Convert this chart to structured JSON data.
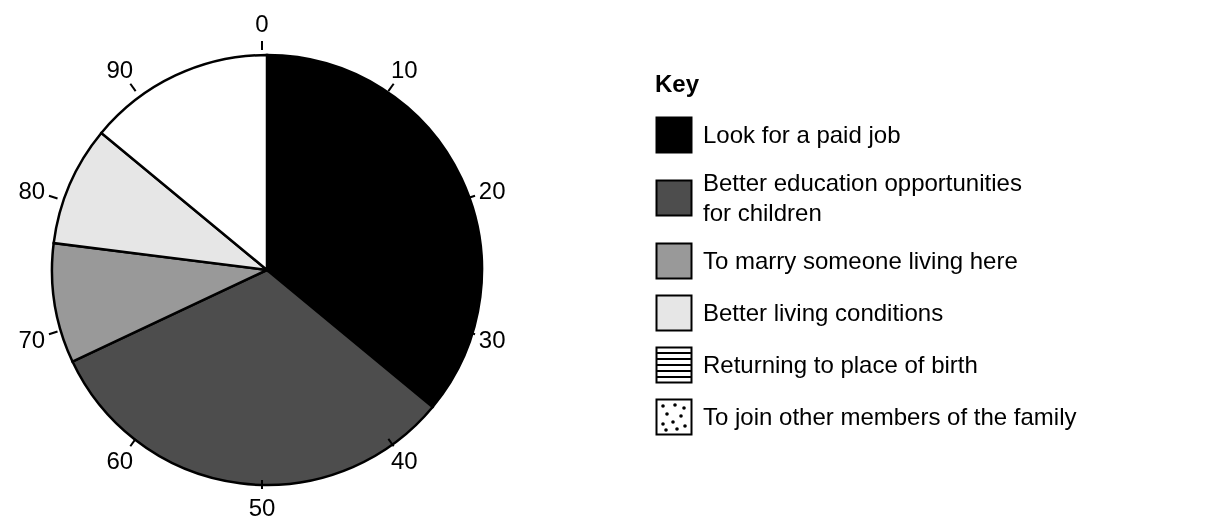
{
  "chart_data": {
    "type": "pie",
    "categories": [
      "Look for a paid job",
      "Better education opportunities for children",
      "To marry someone living here",
      "Better living conditions",
      "Returning to place of birth",
      "To join other members of the family",
      null
    ],
    "values": [
      36,
      32,
      9,
      9,
      0,
      0,
      14
    ],
    "colors": [
      "#000000",
      "#4d4d4d",
      "#999999",
      "#e6e6e6",
      "#ffffff",
      "#ffffff",
      "#ffffff"
    ],
    "annotations": [
      "0",
      "10",
      "20",
      "30",
      "40",
      "50",
      "60",
      "70",
      "80",
      "90"
    ],
    "legend_title": "Key",
    "legend": "right"
  }
}
